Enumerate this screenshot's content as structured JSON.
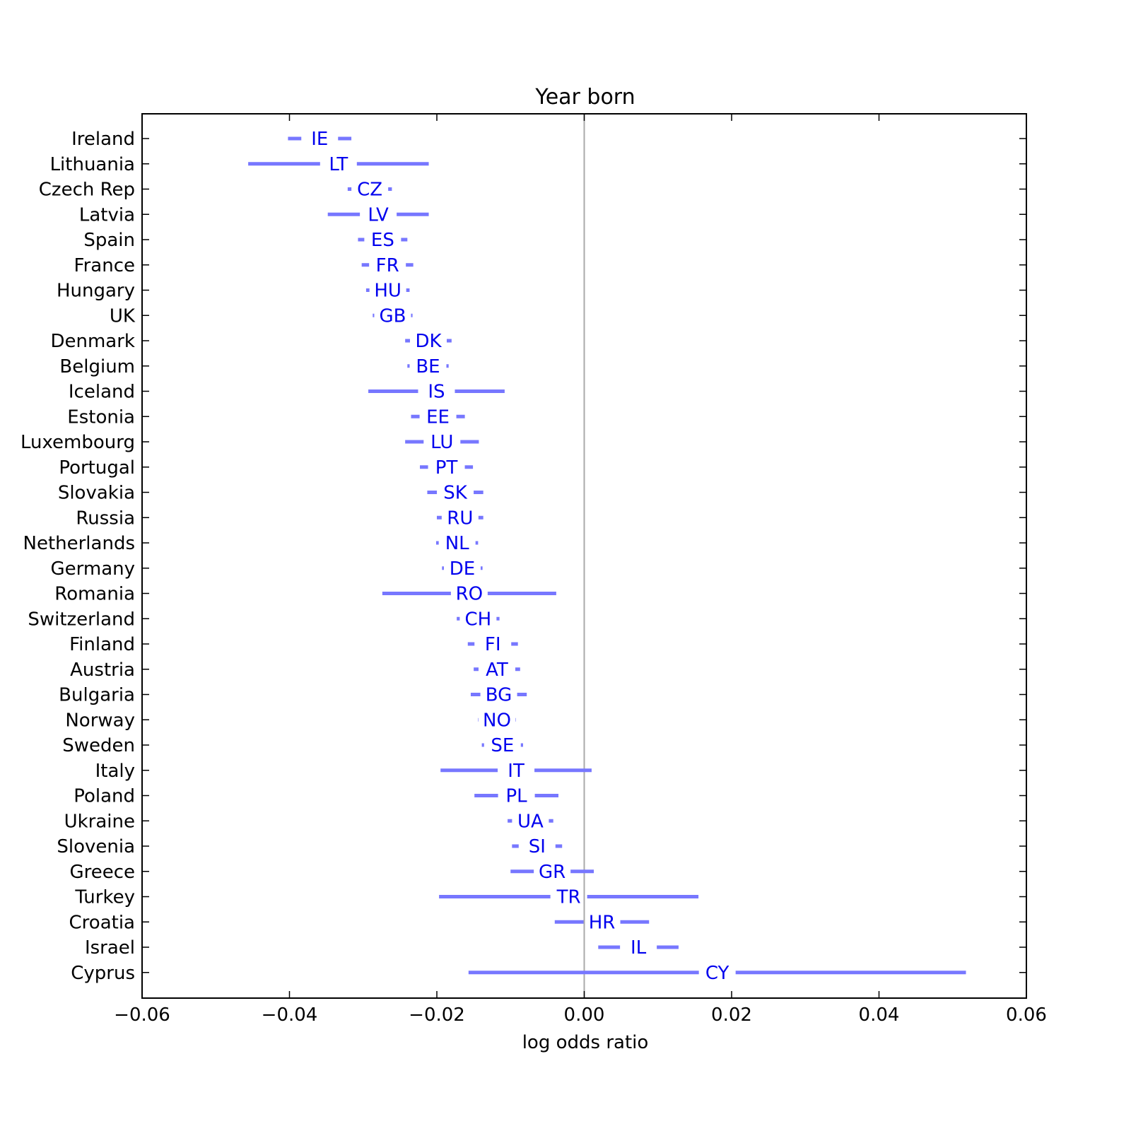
{
  "chart_data": {
    "type": "interval",
    "title": "Year born",
    "xlabel": "log odds ratio",
    "ylabel": "",
    "xlim": [
      -0.06,
      0.06
    ],
    "xticks": [
      -0.06,
      -0.04,
      -0.02,
      0.0,
      0.02,
      0.04,
      0.06
    ],
    "xtick_labels": [
      "−0.06",
      "−0.04",
      "−0.02",
      "0.00",
      "0.02",
      "0.04",
      "0.06"
    ],
    "reference_line_x": 0.0,
    "grid": false,
    "colors": {
      "interval": "#7777ff",
      "label": "#0000ee",
      "reference_line": "#aaaaaa",
      "axes": "#000000"
    },
    "rows": [
      {
        "country": "Ireland",
        "code": "IE",
        "low": -0.0402,
        "high": -0.0316
      },
      {
        "country": "Lithuania",
        "code": "LT",
        "low": -0.0456,
        "high": -0.0211
      },
      {
        "country": "Czech Rep",
        "code": "CZ",
        "low": -0.0321,
        "high": -0.0261
      },
      {
        "country": "Latvia",
        "code": "LV",
        "low": -0.0348,
        "high": -0.0211
      },
      {
        "country": "Spain",
        "code": "ES",
        "low": -0.0307,
        "high": -0.024
      },
      {
        "country": "France",
        "code": "FR",
        "low": -0.0302,
        "high": -0.0232
      },
      {
        "country": "Hungary",
        "code": "HU",
        "low": -0.0296,
        "high": -0.0237
      },
      {
        "country": "UK",
        "code": "GB",
        "low": -0.0287,
        "high": -0.0233
      },
      {
        "country": "Denmark",
        "code": "DK",
        "low": -0.0243,
        "high": -0.018
      },
      {
        "country": "Belgium",
        "code": "BE",
        "low": -0.024,
        "high": -0.0184
      },
      {
        "country": "Iceland",
        "code": "IS",
        "low": -0.0293,
        "high": -0.0108
      },
      {
        "country": "Estonia",
        "code": "EE",
        "low": -0.0235,
        "high": -0.0162
      },
      {
        "country": "Luxembourg",
        "code": "LU",
        "low": -0.0243,
        "high": -0.0143
      },
      {
        "country": "Portugal",
        "code": "PT",
        "low": -0.0223,
        "high": -0.0151
      },
      {
        "country": "Slovakia",
        "code": "SK",
        "low": -0.0213,
        "high": -0.0137
      },
      {
        "country": "Russia",
        "code": "RU",
        "low": -0.02,
        "high": -0.0137
      },
      {
        "country": "Netherlands",
        "code": "NL",
        "low": -0.0201,
        "high": -0.0144
      },
      {
        "country": "Germany",
        "code": "DE",
        "low": -0.0193,
        "high": -0.0138
      },
      {
        "country": "Romania",
        "code": "RO",
        "low": -0.0274,
        "high": -0.0038
      },
      {
        "country": "Switzerland",
        "code": "CH",
        "low": -0.0173,
        "high": -0.0115
      },
      {
        "country": "Finland",
        "code": "FI",
        "low": -0.0158,
        "high": -0.009
      },
      {
        "country": "Austria",
        "code": "AT",
        "low": -0.015,
        "high": -0.0087
      },
      {
        "country": "Bulgaria",
        "code": "BG",
        "low": -0.0154,
        "high": -0.0078
      },
      {
        "country": "Norway",
        "code": "NO",
        "low": -0.0144,
        "high": -0.0093
      },
      {
        "country": "Sweden",
        "code": "SE",
        "low": -0.0139,
        "high": -0.0083
      },
      {
        "country": "Italy",
        "code": "IT",
        "low": -0.0195,
        "high": 0.001
      },
      {
        "country": "Poland",
        "code": "PL",
        "low": -0.0149,
        "high": -0.0035
      },
      {
        "country": "Ukraine",
        "code": "UA",
        "low": -0.0104,
        "high": -0.0042
      },
      {
        "country": "Slovenia",
        "code": "SI",
        "low": -0.0098,
        "high": -0.003
      },
      {
        "country": "Greece",
        "code": "GR",
        "low": -0.01,
        "high": 0.0013
      },
      {
        "country": "Turkey",
        "code": "TR",
        "low": -0.0197,
        "high": 0.0155
      },
      {
        "country": "Croatia",
        "code": "HR",
        "low": -0.004,
        "high": 0.0088
      },
      {
        "country": "Israel",
        "code": "IL",
        "low": 0.0019,
        "high": 0.0128
      },
      {
        "country": "Cyprus",
        "code": "CY",
        "low": -0.0157,
        "high": 0.0518
      }
    ]
  }
}
